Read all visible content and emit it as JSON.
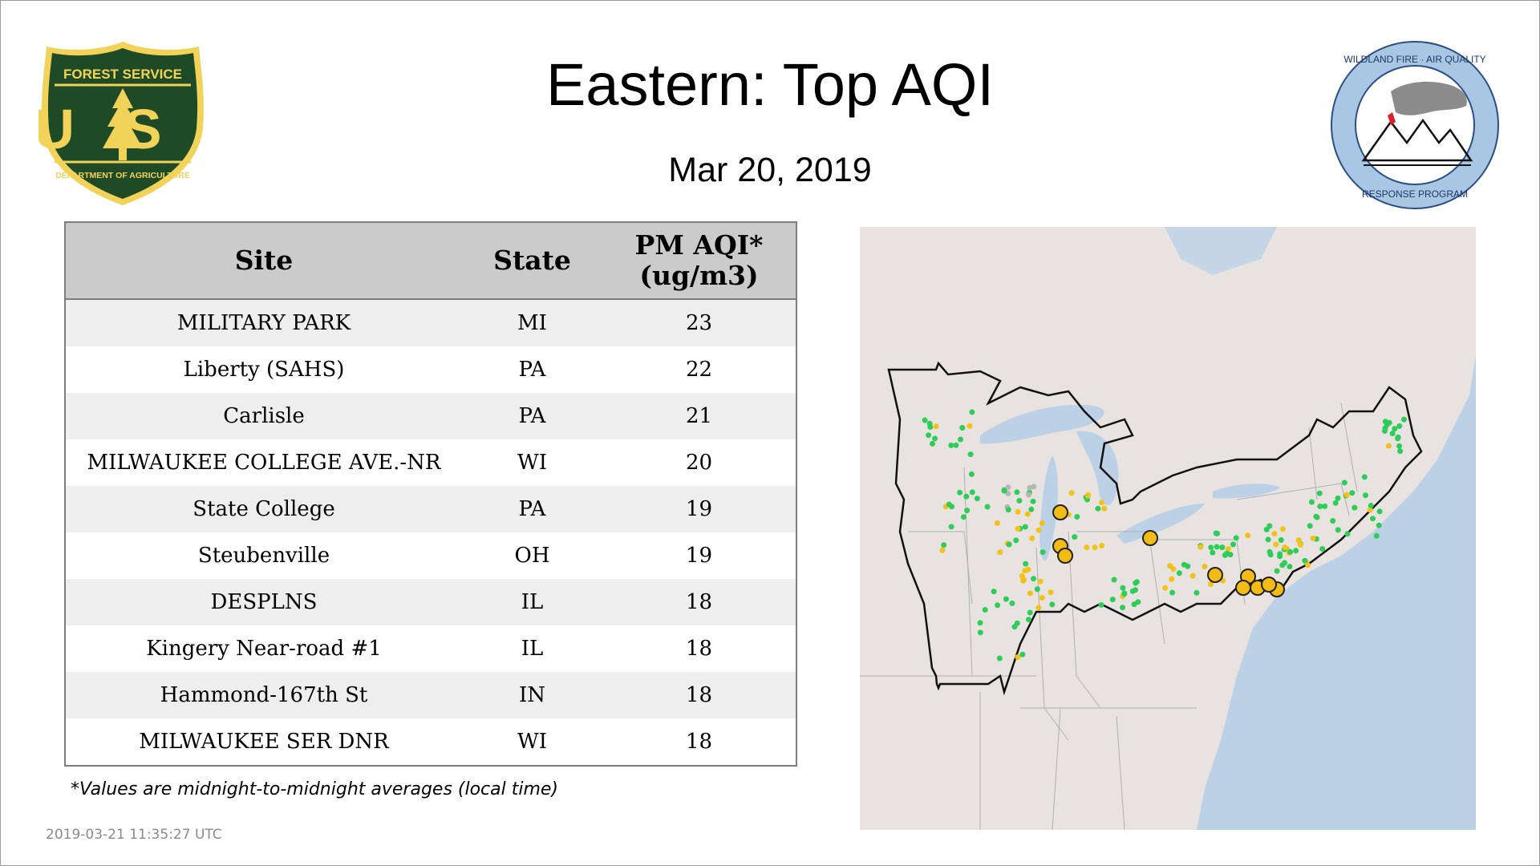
{
  "header": {
    "title": "Eastern: Top AQI",
    "date": "Mar 20, 2019"
  },
  "logos": {
    "forest_service": {
      "top_text": "FOREST SERVICE",
      "letters": "US",
      "bottom_text": "DEPARTMENT OF AGRICULTURE",
      "colors": {
        "shield": "#1f4a26",
        "gold": "#f2d35a"
      }
    },
    "wildland_fire": {
      "top_text": "WILDLAND FIRE · AIR QUALITY",
      "bottom_text": "RESPONSE PROGRAM",
      "colors": {
        "ring": "#a9c6e4",
        "border": "#2a4f80",
        "flag": "#d8232a"
      }
    }
  },
  "table": {
    "headers": {
      "site": "Site",
      "state": "State",
      "aqi_line1": "PM AQI*",
      "aqi_line2": "(ug/m3)"
    },
    "rows": [
      {
        "site": "MILITARY PARK",
        "state": "MI",
        "aqi": "23"
      },
      {
        "site": "Liberty (SAHS)",
        "state": "PA",
        "aqi": "22"
      },
      {
        "site": "Carlisle",
        "state": "PA",
        "aqi": "21"
      },
      {
        "site": "MILWAUKEE COLLEGE AVE.-NR",
        "state": "WI",
        "aqi": "20"
      },
      {
        "site": "State College",
        "state": "PA",
        "aqi": "19"
      },
      {
        "site": "Steubenville",
        "state": "OH",
        "aqi": "19"
      },
      {
        "site": "DESPLNS",
        "state": "IL",
        "aqi": "18"
      },
      {
        "site": "Kingery Near-road #1",
        "state": "IL",
        "aqi": "18"
      },
      {
        "site": "Hammond-167th St",
        "state": "IN",
        "aqi": "18"
      },
      {
        "site": "MILWAUKEE SER DNR",
        "state": "WI",
        "aqi": "18"
      }
    ]
  },
  "footnote": "*Values are midnight-to-midnight averages (local time)",
  "timestamp": "2019-03-21 11:35:27 UTC",
  "map": {
    "colors": {
      "land": "#e8e3e1",
      "water": "#bcd1e6",
      "state_lines": "#b0b0b0",
      "region_outline": "#111111",
      "monitor_good": "#2ecc58",
      "monitor_moderate": "#f1c21a",
      "monitor_nodata": "#b6b6b6",
      "top_site": "#f3bb16"
    }
  }
}
